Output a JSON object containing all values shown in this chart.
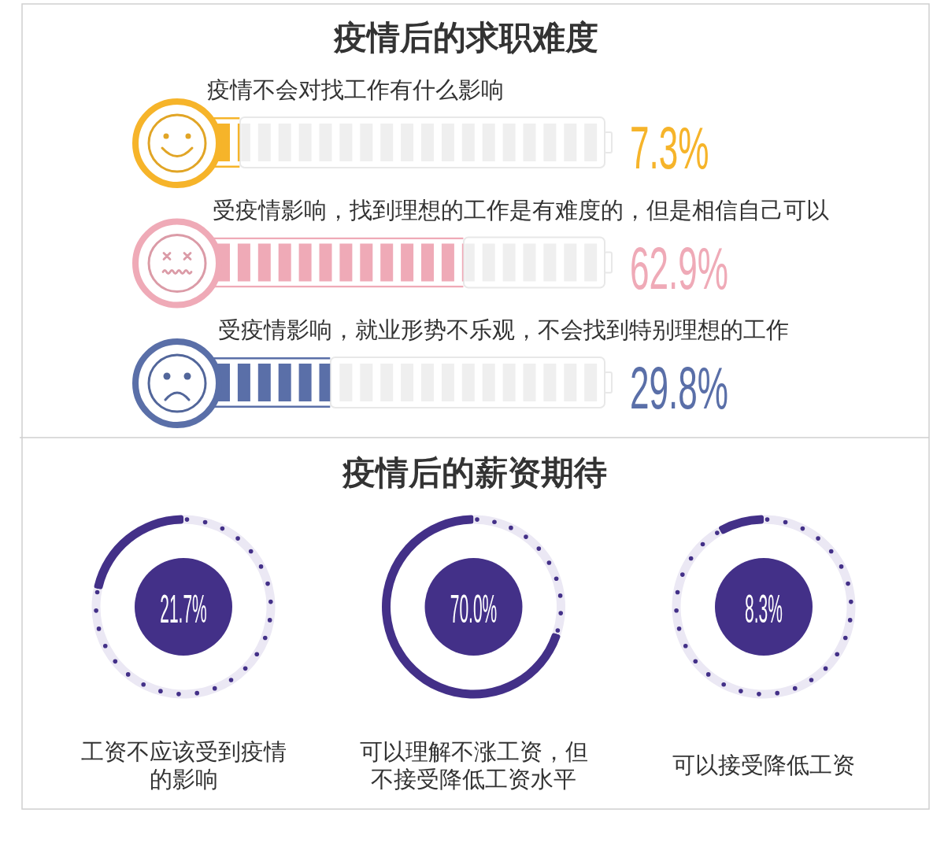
{
  "chart_data": [
    {
      "type": "bar",
      "orientation": "horizontal",
      "title": "疫情后的求职难度",
      "categories": [
        "疫情不会对找工作有什么影响",
        "受疫情影响，找到理想的工作是有难度的，但是相信自己可以",
        "受疫情影响，就业形势不乐观，不会找到特别理想的工作"
      ],
      "values": [
        7.3,
        62.9,
        29.8
      ],
      "colors": [
        "#f6b42a",
        "#efaab7",
        "#5a6fa8"
      ],
      "value_labels": [
        "7.3%",
        "62.9%",
        "29.8%"
      ],
      "xlim": [
        0,
        100
      ]
    },
    {
      "type": "other",
      "title": "疫情后的薪资期待"
    },
    {
      "type": "donut",
      "title": "工资不应该受到疫情的影响",
      "categories": [
        null,
        null
      ],
      "values": [
        21.7,
        78.3
      ],
      "colors": [
        "#433088",
        "#ebe8f4"
      ],
      "annotations": [
        "21.7%"
      ]
    },
    {
      "type": "donut",
      "title": "可以理解不涨工资，但不接受降低工资水平",
      "categories": [
        null,
        null
      ],
      "values": [
        70.0,
        30.0
      ],
      "colors": [
        "#433088",
        "#ebe8f4"
      ],
      "annotations": [
        "70.0%"
      ]
    },
    {
      "type": "donut",
      "title": "可以接受降低工资",
      "categories": [
        null,
        null
      ],
      "values": [
        8.3,
        91.7
      ],
      "colors": [
        "#433088",
        "#ebe8f4"
      ],
      "annotations": [
        "8.3%"
      ]
    }
  ]
}
